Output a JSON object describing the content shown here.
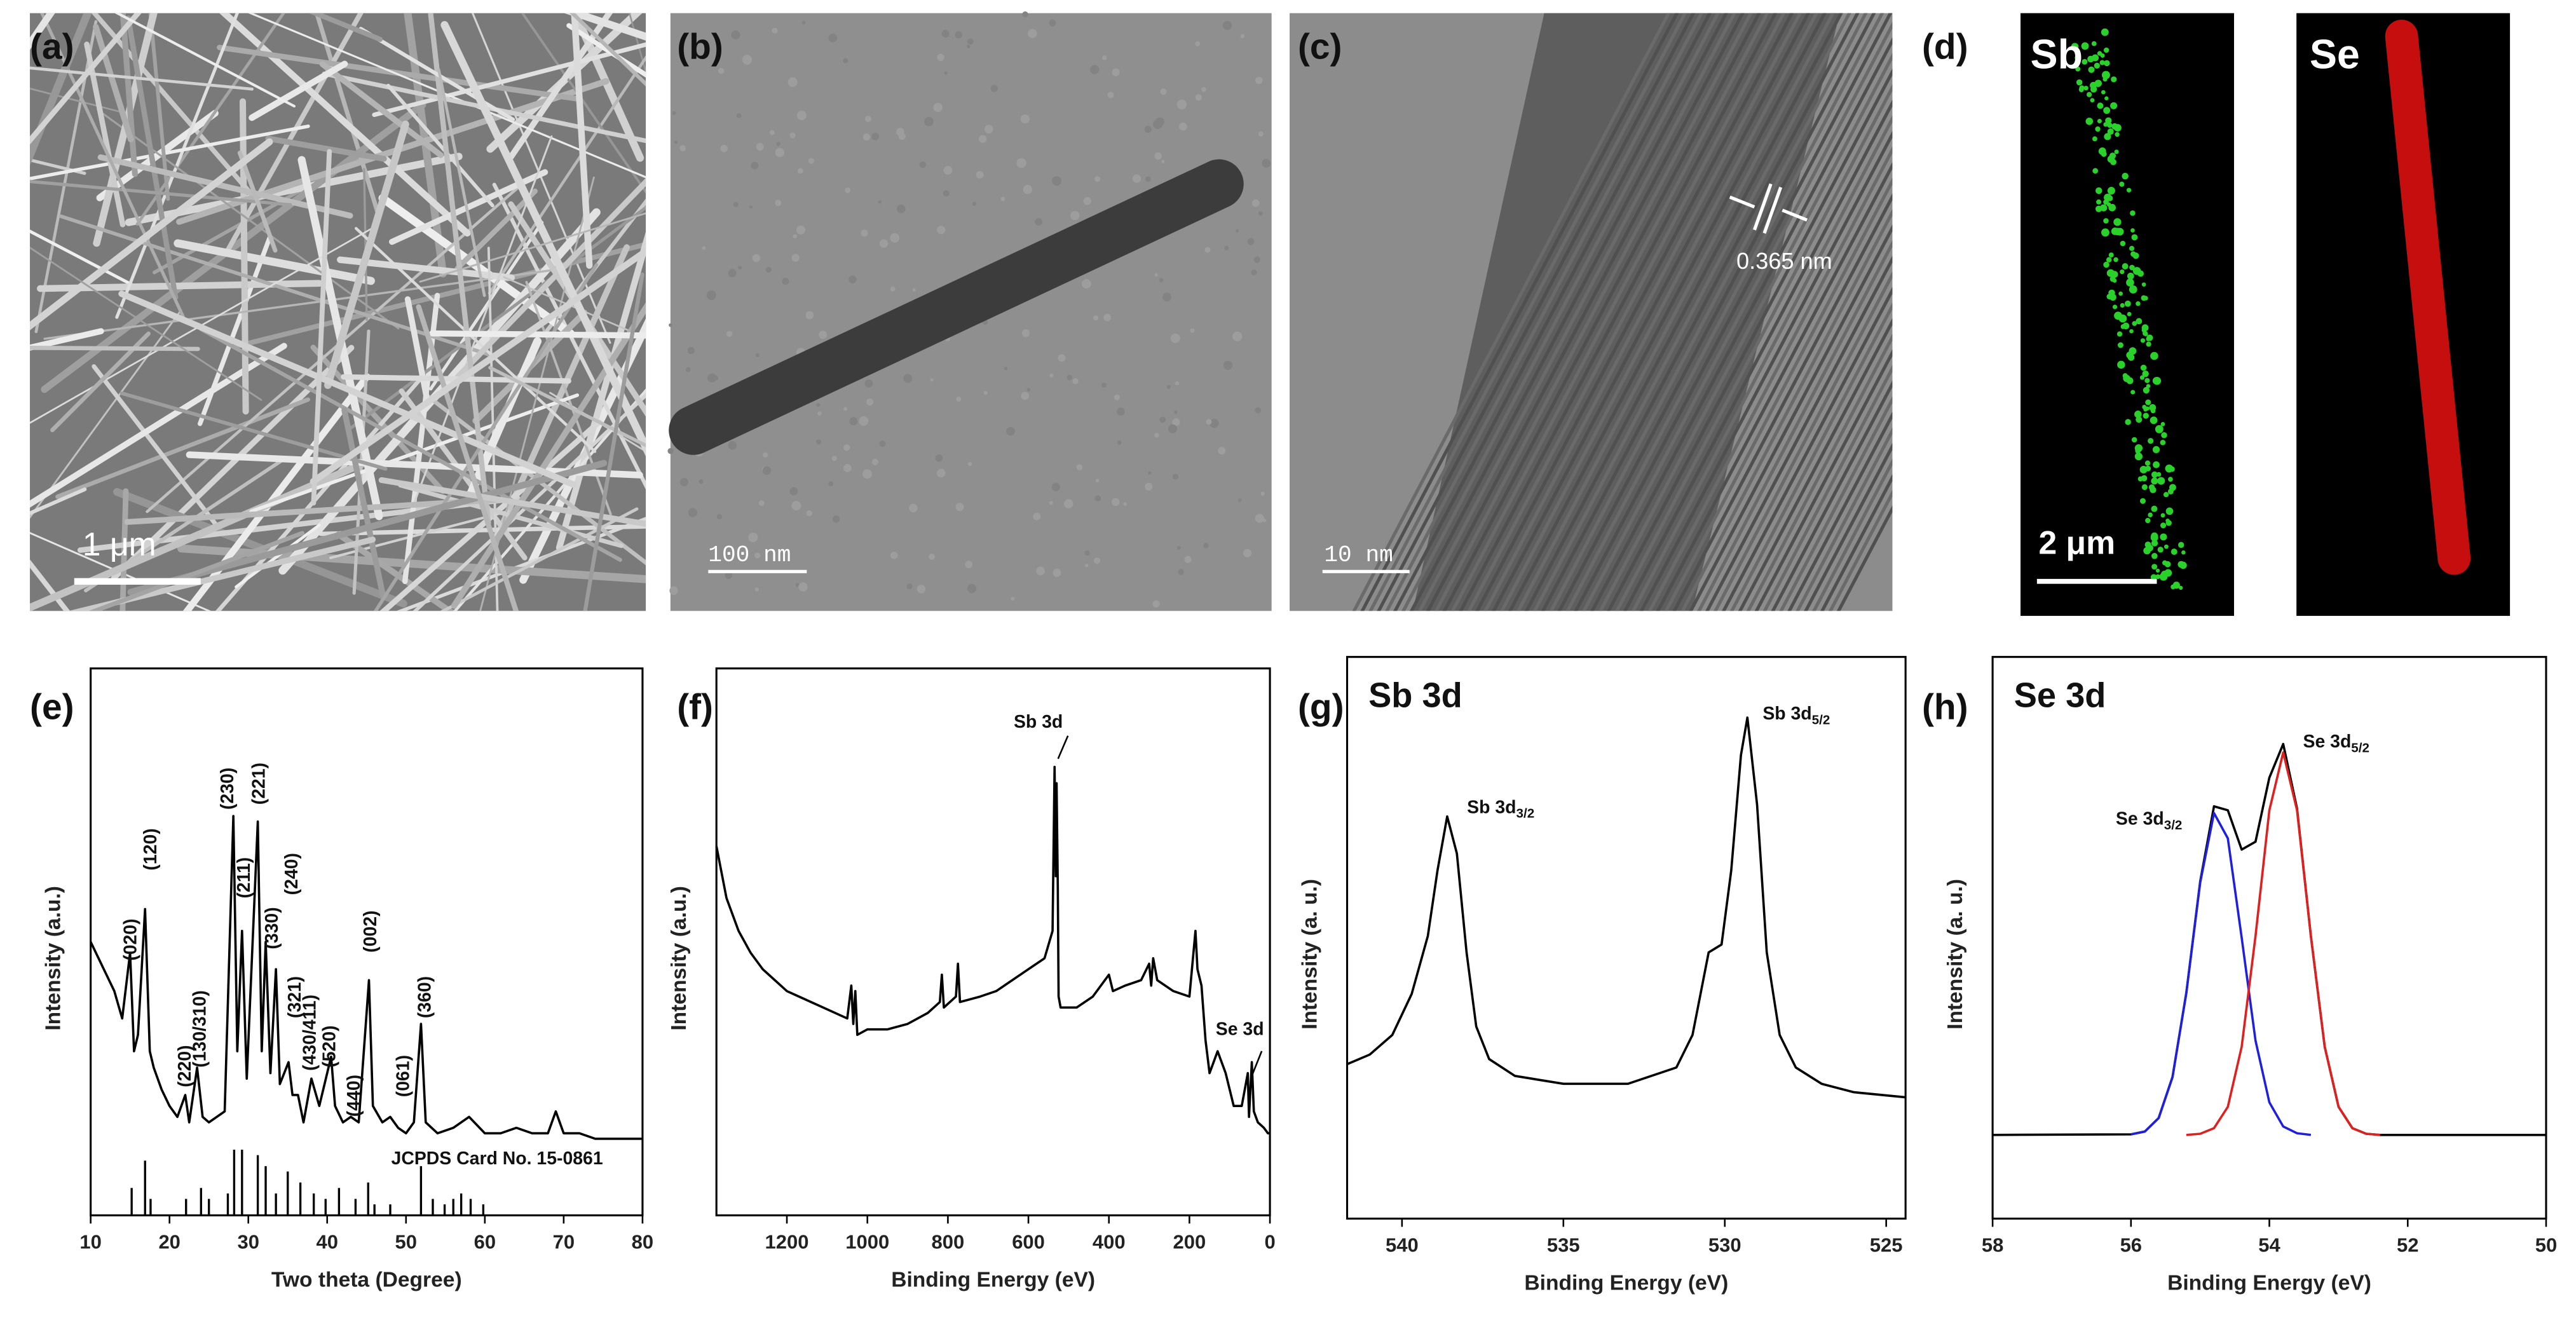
{
  "micrographs": [
    {
      "label": "(a)",
      "scale_bar": "1 μm"
    },
    {
      "label": "(b)",
      "scale_bar": "100 nm"
    },
    {
      "label": "(c)",
      "scale_bar": "10 nm",
      "annotation": "0.365 nm"
    },
    {
      "label": "(d)",
      "scale_bar": "2 μm",
      "maps": [
        "Sb",
        "Se"
      ]
    }
  ],
  "chart_data": [
    {
      "type": "line",
      "panel_label": "(e)",
      "x_label": "Two theta (Degree)",
      "y_label": "Intensity (a.u.)",
      "xlim": [
        10,
        80
      ],
      "xticks": [
        10,
        20,
        30,
        40,
        50,
        60,
        70,
        80
      ],
      "ylim": [
        0,
        100
      ],
      "series": [
        {
          "color": "#000000",
          "x": [
            10,
            11,
            12,
            13,
            14,
            15,
            15.5,
            16,
            16.9,
            17.5,
            18,
            19,
            20,
            21,
            22,
            22.5,
            23.5,
            24.2,
            25,
            26,
            27,
            28.1,
            28.6,
            29.2,
            29.8,
            31.2,
            31.7,
            32.2,
            32.8,
            33.5,
            34,
            35.1,
            35.6,
            36.3,
            37,
            38,
            39,
            40.5,
            41,
            42,
            43,
            44,
            45.3,
            45.8,
            47,
            48,
            49,
            50,
            51,
            51.9,
            52.5,
            54,
            56,
            58,
            60,
            62,
            64,
            66,
            68,
            69,
            70,
            72,
            74,
            76,
            78,
            80
          ],
          "values": [
            50,
            47,
            44,
            41,
            36,
            48,
            30,
            33,
            56,
            30,
            27,
            23,
            20,
            18,
            22,
            17,
            27,
            18,
            17,
            18,
            19,
            73,
            30,
            52,
            25,
            72,
            30,
            50,
            26,
            45,
            24,
            28,
            22,
            22,
            17,
            25,
            20,
            29,
            20,
            17,
            18,
            17,
            43,
            20,
            17,
            18,
            16,
            15,
            17,
            35,
            17,
            15,
            16,
            18,
            15,
            15,
            16,
            15,
            15,
            19,
            15,
            15,
            14,
            14,
            14,
            14
          ]
        }
      ],
      "reference": {
        "label": "JCPDS Card No. 15-0861",
        "x": [
          15.2,
          16.9,
          17.6,
          22.1,
          24,
          25,
          27.4,
          28.2,
          29.2,
          31.2,
          32.2,
          33.5,
          35,
          36.6,
          38.3,
          39.8,
          41.5,
          43.6,
          45.2,
          46,
          48,
          51.9,
          53.4,
          54.9,
          56,
          57,
          58.2,
          59.8
        ],
        "values": [
          5,
          10,
          3,
          3,
          5,
          3,
          4,
          12,
          12,
          11,
          9,
          4,
          8,
          6,
          4,
          3,
          5,
          3,
          6,
          2,
          2,
          9,
          3,
          2,
          3,
          4,
          3,
          2
        ]
      },
      "peak_labels": [
        "(020)",
        "(120)",
        "(220)",
        "(130/310)",
        "(230)",
        "(211)",
        "(221)",
        "(330)",
        "(240)",
        "(321)",
        "(430/411)",
        "(520)",
        "(440)",
        "(002)",
        "(061)",
        "(360)"
      ]
    },
    {
      "type": "line",
      "panel_label": "(f)",
      "x_label": "Binding Energy (eV)",
      "y_label": "Intensity (a.u.)",
      "xlim": [
        1375,
        0
      ],
      "xticks": [
        1200,
        1000,
        800,
        600,
        400,
        200,
        0
      ],
      "ylim": [
        0,
        100
      ],
      "series": [
        {
          "color": "#000000",
          "x": [
            1375,
            1350,
            1320,
            1290,
            1260,
            1230,
            1200,
            1170,
            1140,
            1110,
            1080,
            1050,
            1040,
            1035,
            1030,
            1025,
            1000,
            950,
            900,
            850,
            820,
            815,
            810,
            780,
            775,
            770,
            720,
            680,
            640,
            600,
            560,
            540,
            535,
            532,
            530,
            527,
            525,
            520,
            480,
            440,
            400,
            390,
            360,
            320,
            300,
            295,
            290,
            280,
            240,
            200,
            185,
            180,
            170,
            160,
            150,
            130,
            110,
            90,
            70,
            55,
            52,
            45,
            40,
            30,
            15,
            5,
            0
          ],
          "values": [
            67.5,
            58,
            52,
            48,
            45,
            43,
            41,
            40,
            39,
            38,
            37,
            36,
            42,
            35,
            41,
            33,
            34,
            34,
            35,
            37,
            39,
            44,
            38,
            40,
            46,
            39,
            40,
            41,
            43,
            45,
            47,
            52,
            82,
            62,
            79,
            60,
            40,
            38,
            38,
            40,
            44,
            41,
            42,
            43,
            46,
            42,
            47,
            43,
            41,
            40,
            52,
            45,
            42,
            32,
            26,
            30,
            26,
            20,
            20,
            26,
            18,
            28,
            19,
            17,
            16,
            15,
            15
          ]
        }
      ],
      "annotations": [
        {
          "text": "Sb 3d"
        },
        {
          "text": "Se 3d"
        }
      ]
    },
    {
      "type": "line",
      "panel_label": "(g)",
      "title": "Sb 3d",
      "x_label": "Binding Energy (eV)",
      "y_label": "Intensity (a. u.)",
      "xlim": [
        541.7,
        524.4
      ],
      "xticks": [
        540,
        535,
        530,
        525
      ],
      "ylim": [
        0,
        100
      ],
      "series": [
        {
          "color": "#000000",
          "x": [
            541.7,
            541,
            540.3,
            539.7,
            539.2,
            538.9,
            538.6,
            538.3,
            538,
            537.7,
            537.3,
            536.5,
            535,
            533,
            531.5,
            531,
            530.5,
            530.1,
            529.8,
            529.5,
            529.3,
            529,
            528.7,
            528.3,
            527.8,
            527,
            526,
            524.4
          ],
          "values": [
            27.5,
            29.2,
            32.7,
            40,
            50.3,
            62,
            71.6,
            65,
            47.4,
            34.2,
            28.4,
            25.4,
            24,
            24,
            26.9,
            32.7,
            47.4,
            48.8,
            62,
            82.5,
            89.2,
            73.7,
            47.4,
            32.7,
            26.9,
            24,
            22.5,
            21.6
          ]
        }
      ],
      "annotations": [
        {
          "text": "Sb 3d",
          "sub": "3/2"
        },
        {
          "text": "Sb 3d",
          "sub": "5/2"
        }
      ]
    },
    {
      "type": "line",
      "panel_label": "(h)",
      "title": "Se 3d",
      "x_label": "Binding Energy (eV)",
      "y_label": "Intensity (a. u.)",
      "xlim": [
        58,
        50
      ],
      "xticks": [
        58,
        56,
        54,
        52,
        50
      ],
      "ylim": [
        0,
        100
      ],
      "series": [
        {
          "color": "#000000",
          "x": [
            58,
            56,
            55.8,
            55.6,
            55.4,
            55.2,
            55.0,
            54.8,
            54.6,
            54.4,
            54.2,
            54.0,
            53.8,
            53.6,
            53.4,
            53.2,
            53.0,
            52.8,
            52.6,
            52.4,
            50
          ],
          "values": [
            14.9,
            15.0,
            15.5,
            17.9,
            25.2,
            40.2,
            60.0,
            73.4,
            72.7,
            65.7,
            67.1,
            78.5,
            84.5,
            73.0,
            50.3,
            30.6,
            19.9,
            16.1,
            15.1,
            14.9,
            14.9
          ]
        },
        {
          "color": "#1f1fe0",
          "x": [
            56,
            55.8,
            55.6,
            55.4,
            55.2,
            55.0,
            54.8,
            54.6,
            54.4,
            54.2,
            54.0,
            53.8,
            53.6,
            53.4
          ],
          "values": [
            15.0,
            15.5,
            17.9,
            25.2,
            40.2,
            59.8,
            72.2,
            67.7,
            50.0,
            31.7,
            20.7,
            16.4,
            15.2,
            14.9
          ]
        },
        {
          "color": "#e01f1f",
          "x": [
            55.2,
            55.0,
            54.8,
            54.6,
            54.4,
            54.2,
            54.0,
            53.8,
            53.6,
            53.4,
            53.2,
            53.0,
            52.8,
            52.6,
            52.4
          ],
          "values": [
            14.9,
            15.1,
            16.1,
            19.9,
            30.6,
            50.3,
            72.7,
            83.0,
            72.7,
            50.3,
            30.6,
            19.9,
            16.1,
            15.1,
            14.9
          ]
        }
      ],
      "annotations": [
        {
          "text": "Se 3d",
          "sub": "3/2"
        },
        {
          "text": "Se 3d",
          "sub": "5/2"
        }
      ]
    }
  ]
}
